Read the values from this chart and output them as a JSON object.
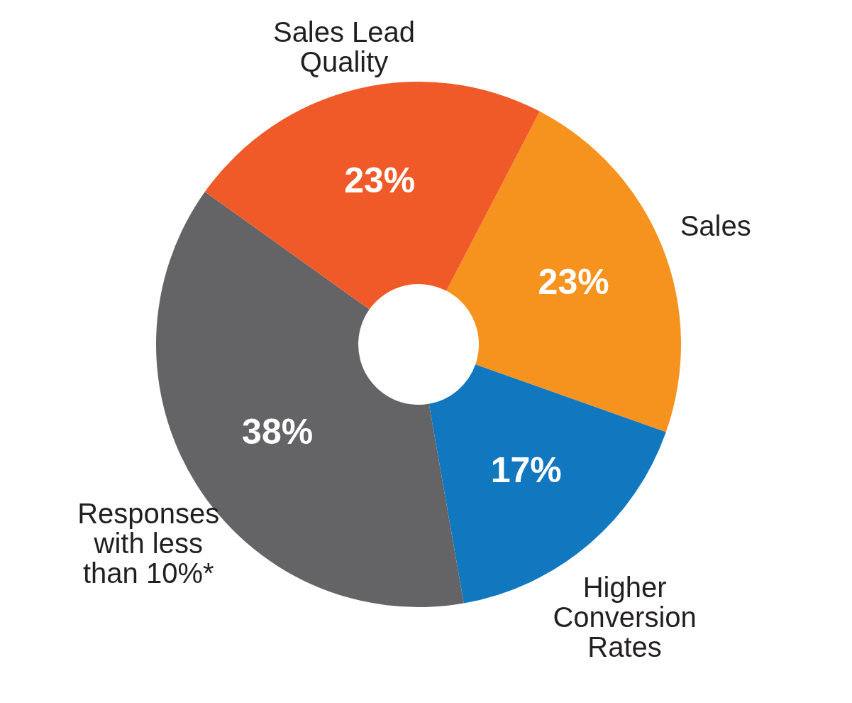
{
  "chart_data": {
    "type": "donut",
    "categories": [
      "Sales",
      "Higher Conversion Rates",
      "Responses with less than 10%*",
      "Sales Lead Quality"
    ],
    "values": [
      23,
      17,
      38,
      23
    ],
    "value_labels": [
      "23%",
      "17%",
      "38%",
      "23%"
    ],
    "colors": [
      "#f6921e",
      "#1177bf",
      "#646466",
      "#f05a28"
    ],
    "legend": false
  }
}
